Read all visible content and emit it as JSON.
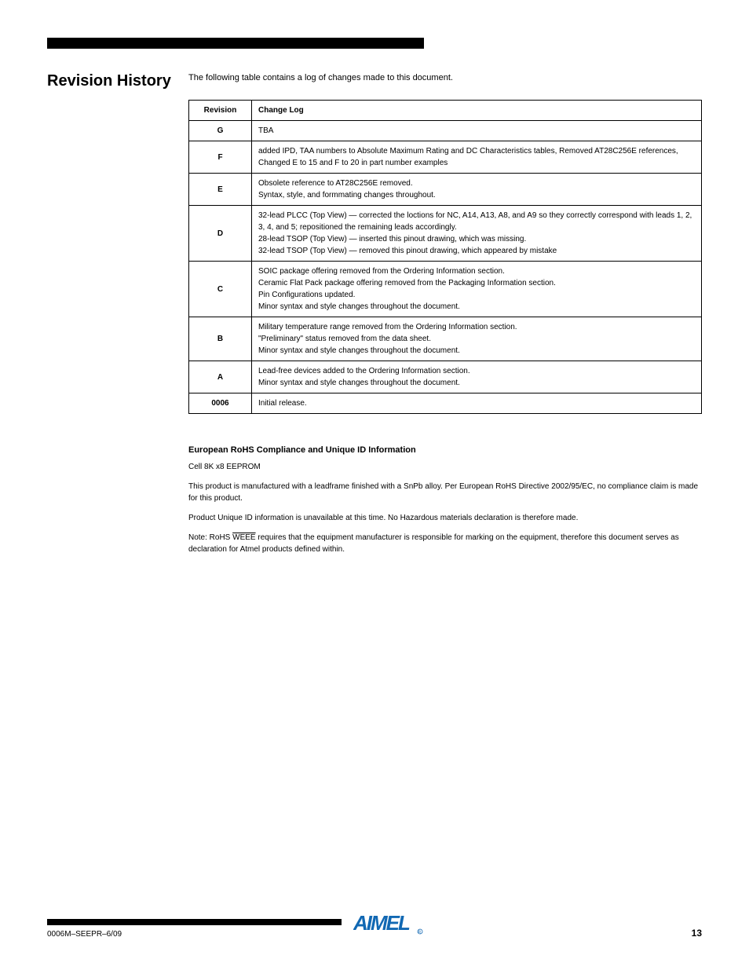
{
  "header": {
    "title": "Revision History",
    "subtitle": "The following table contains a log of changes made to this document."
  },
  "table": {
    "columns": [
      "Revision",
      "Change Log"
    ],
    "rows": [
      {
        "rev": "G",
        "log": "TBA"
      },
      {
        "rev": "F",
        "log": "added IPD, TAA numbers to Absolute Maximum Rating and DC Characteristics tables, Removed AT28C256E references, Changed E to 15 and F to 20 in part number examples"
      },
      {
        "rev": "E",
        "log": "Obsolete reference to AT28C256E removed.\nSyntax, style, and formmating changes throughout."
      },
      {
        "rev": "D",
        "log": "32-lead PLCC (Top View) — corrected the loctions for NC, A14, A13, A8, and A9 so they correctly correspond with leads 1, 2, 3, 4, and 5; repositioned the remaining leads accordingly.\n28-lead TSOP (Top View) — inserted this pinout drawing, which was missing.\n32-lead TSOP (Top View) — removed this pinout drawing, which appeared by mistake"
      },
      {
        "rev": "C",
        "log": "SOIC package offering removed from the Ordering Information section.\nCeramic Flat Pack package offering removed from the Packaging Information section.\nPin Configurations updated.\nMinor syntax and style changes throughout the document."
      },
      {
        "rev": "B",
        "log": "Military temperature range removed from the Ordering Information section.\n\"Preliminary\" status removed from the data sheet.\nMinor syntax and style changes throughout the document."
      },
      {
        "rev": "A",
        "log": "Lead-free devices added to the Ordering Information section.\nMinor syntax and style changes throughout the document."
      },
      {
        "rev": "0006",
        "log": "Initial release."
      }
    ]
  },
  "compliance": {
    "title": "European RoHS Compliance and Unique ID Information",
    "body": [
      "Cell 8K x8 EEPROM",
      "This product is manufactured with a leadframe finished with a SnPb alloy. Per European RoHS Directive 2002/95/EC, no compliance claim is made for this product.",
      "Product Unique ID information is unavailable at this time. No Hazardous materials declaration is therefore made.",
      "Note: RoHS WEEE requires that the equipment manufacturer is responsible for marking on the equipment, therefore this document serves as declaration for Atmel products defined within."
    ]
  },
  "footer": {
    "text": "0006M–SEEPR–6/09",
    "page": "13"
  }
}
